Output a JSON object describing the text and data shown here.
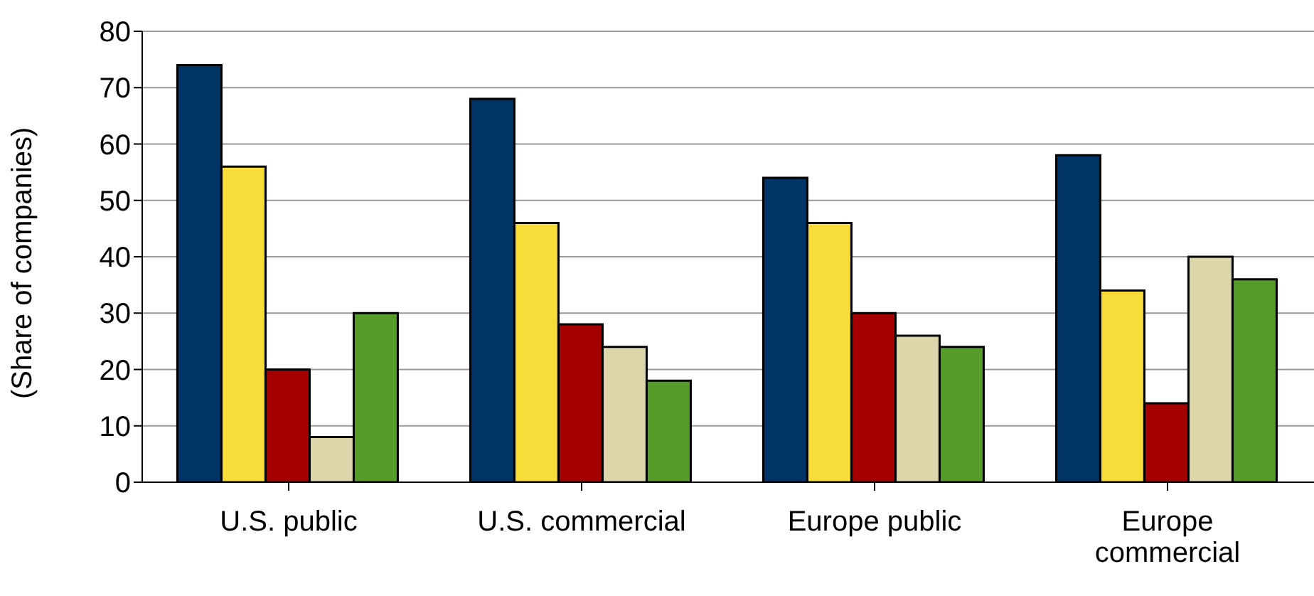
{
  "chart_data": {
    "type": "bar",
    "ylabel": "(Share of companies)",
    "categories": [
      "U.S. public",
      "U.S. commercial",
      "Europe public",
      "Europe commercial"
    ],
    "series": [
      {
        "color": "#003366",
        "values": [
          74,
          68,
          54,
          58
        ]
      },
      {
        "color": "#f7dc3a",
        "values": [
          56,
          46,
          46,
          34
        ]
      },
      {
        "color": "#a50000",
        "values": [
          20,
          28,
          30,
          14
        ]
      },
      {
        "color": "#ddd6aa",
        "values": [
          8,
          24,
          26,
          40
        ]
      },
      {
        "color": "#559c2a",
        "values": [
          30,
          18,
          24,
          36
        ]
      }
    ],
    "ylim": [
      0,
      80
    ],
    "yticks": [
      0,
      10,
      20,
      30,
      40,
      50,
      60,
      70,
      80
    ],
    "grid": "y",
    "legend": false
  }
}
